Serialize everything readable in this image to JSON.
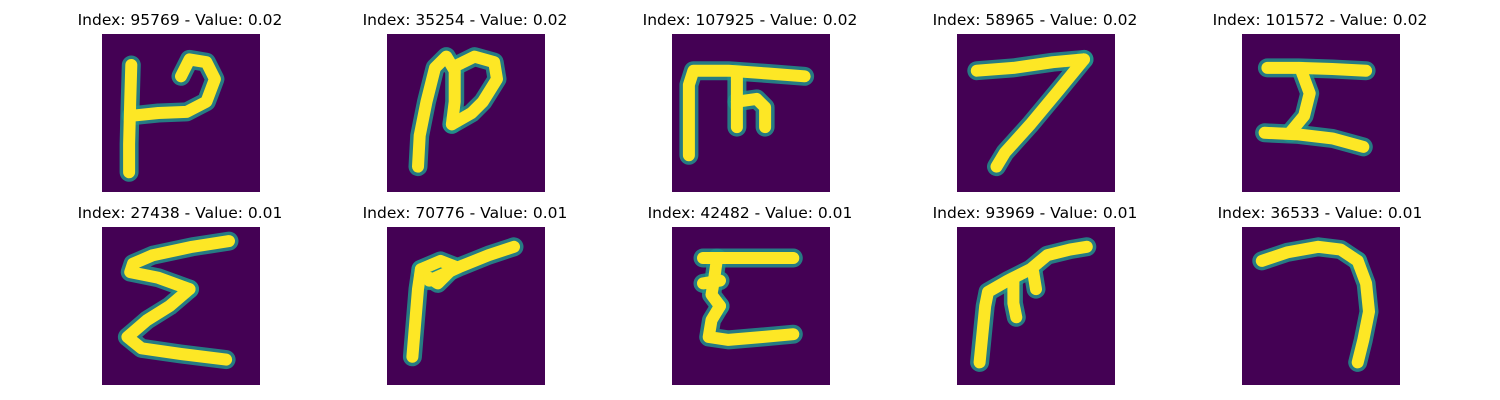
{
  "figure": {
    "colormap": "viridis",
    "background_color": "#440154",
    "stroke_mid_color": "#21918c",
    "stroke_color": "#fde725",
    "title_color": "#000000"
  },
  "panels": [
    {
      "title": "Index: 95769 - Value: 0.02",
      "index": 95769,
      "value": 0.02,
      "strokes": [
        [
          [
            5.2,
            5.5
          ],
          [
            5.0,
            12.0
          ],
          [
            4.8,
            19.5
          ],
          [
            4.8,
            24.5
          ]
        ],
        [
          [
            5.2,
            14.5
          ],
          [
            10.0,
            14.0
          ],
          [
            15.0,
            13.8
          ],
          [
            18.5,
            12.0
          ],
          [
            20.0,
            8.0
          ],
          [
            18.5,
            5.0
          ],
          [
            15.5,
            4.5
          ],
          [
            14.0,
            7.5
          ]
        ]
      ]
    },
    {
      "title": "Index: 35254 - Value: 0.02",
      "index": 35254,
      "value": 0.02,
      "strokes": [
        [
          [
            5.5,
            23.5
          ],
          [
            5.8,
            18.0
          ],
          [
            7.0,
            12.0
          ],
          [
            8.5,
            6.0
          ],
          [
            10.5,
            4.0
          ],
          [
            12.0,
            6.5
          ],
          [
            12.0,
            12.0
          ],
          [
            11.5,
            16.0
          ]
        ],
        [
          [
            11.5,
            16.0
          ],
          [
            15.0,
            14.0
          ],
          [
            17.0,
            12.0
          ],
          [
            19.5,
            8.0
          ],
          [
            19.0,
            5.0
          ],
          [
            15.5,
            4.0
          ],
          [
            12.5,
            5.5
          ]
        ]
      ]
    },
    {
      "title": "Index: 107925 - Value: 0.02",
      "index": 107925,
      "value": 0.02,
      "strokes": [
        [
          [
            3.0,
            21.5
          ],
          [
            3.0,
            15.0
          ],
          [
            3.0,
            9.0
          ],
          [
            3.8,
            6.5
          ],
          [
            10.0,
            6.5
          ],
          [
            17.0,
            7.0
          ],
          [
            23.5,
            7.5
          ]
        ],
        [
          [
            11.5,
            7.0
          ],
          [
            11.5,
            13.0
          ],
          [
            11.5,
            16.5
          ]
        ],
        [
          [
            11.5,
            12.0
          ],
          [
            15.0,
            11.5
          ],
          [
            16.5,
            13.0
          ],
          [
            16.5,
            16.5
          ]
        ]
      ]
    },
    {
      "title": "Index: 58965 - Value: 0.02",
      "index": 58965,
      "value": 0.02,
      "strokes": [
        [
          [
            3.5,
            6.5
          ],
          [
            10.0,
            6.0
          ],
          [
            17.0,
            5.0
          ],
          [
            22.5,
            4.5
          ]
        ],
        [
          [
            22.5,
            4.5
          ],
          [
            18.0,
            10.0
          ],
          [
            13.0,
            16.0
          ],
          [
            8.5,
            21.0
          ],
          [
            7.0,
            23.5
          ]
        ]
      ]
    },
    {
      "title": "Index: 101572 - Value: 0.02",
      "index": 101572,
      "value": 0.02,
      "strokes": [
        [
          [
            4.5,
            6.0
          ],
          [
            10.0,
            6.0
          ],
          [
            16.0,
            6.2
          ],
          [
            22.0,
            6.5
          ]
        ],
        [
          [
            10.5,
            6.5
          ],
          [
            12.0,
            10.5
          ],
          [
            11.0,
            14.5
          ],
          [
            8.5,
            17.5
          ]
        ],
        [
          [
            4.0,
            17.5
          ],
          [
            10.0,
            17.8
          ],
          [
            16.0,
            18.5
          ],
          [
            21.5,
            20.0
          ]
        ]
      ]
    },
    {
      "title": "Index: 27438 - Value: 0.01",
      "index": 27438,
      "value": 0.01,
      "strokes": [
        [
          [
            22.5,
            2.5
          ],
          [
            16.0,
            3.5
          ],
          [
            9.0,
            5.0
          ],
          [
            5.5,
            6.5
          ],
          [
            5.0,
            8.0
          ],
          [
            10.0,
            9.0
          ],
          [
            15.5,
            11.0
          ]
        ],
        [
          [
            15.5,
            11.0
          ],
          [
            12.0,
            14.0
          ],
          [
            8.0,
            16.5
          ],
          [
            4.5,
            19.5
          ],
          [
            7.0,
            21.5
          ],
          [
            14.0,
            22.5
          ],
          [
            22.0,
            23.5
          ]
        ]
      ]
    },
    {
      "title": "Index: 70776 - Value: 0.01",
      "index": 70776,
      "value": 0.01,
      "strokes": [
        [
          [
            4.5,
            23.0
          ],
          [
            5.0,
            17.0
          ],
          [
            5.5,
            11.0
          ],
          [
            6.0,
            7.5
          ]
        ],
        [
          [
            6.0,
            7.5
          ],
          [
            9.5,
            6.0
          ],
          [
            12.0,
            7.0
          ],
          [
            9.0,
            10.0
          ],
          [
            7.5,
            9.0
          ]
        ],
        [
          [
            7.5,
            9.5
          ],
          [
            13.0,
            7.0
          ],
          [
            18.0,
            5.0
          ],
          [
            22.5,
            3.5
          ]
        ]
      ]
    },
    {
      "title": "Index: 42482 - Value: 0.01",
      "index": 42482,
      "value": 0.01,
      "strokes": [
        [
          [
            5.5,
            5.5
          ],
          [
            11.0,
            5.5
          ],
          [
            16.5,
            5.5
          ],
          [
            21.5,
            5.5
          ]
        ],
        [
          [
            8.0,
            5.5
          ],
          [
            7.5,
            9.0
          ],
          [
            7.0,
            12.0
          ],
          [
            8.5,
            14.0
          ]
        ],
        [
          [
            5.5,
            10.0
          ],
          [
            8.5,
            9.5
          ]
        ],
        [
          [
            8.5,
            14.0
          ],
          [
            7.0,
            16.5
          ],
          [
            6.5,
            19.5
          ],
          [
            10.0,
            20.0
          ],
          [
            16.0,
            19.5
          ],
          [
            21.5,
            19.0
          ]
        ]
      ]
    },
    {
      "title": "Index: 93969 - Value: 0.01",
      "index": 93969,
      "value": 0.01,
      "strokes": [
        [
          [
            4.0,
            24.0
          ],
          [
            4.5,
            19.0
          ],
          [
            5.0,
            14.0
          ],
          [
            5.5,
            11.5
          ],
          [
            9.0,
            9.5
          ],
          [
            13.0,
            7.5
          ],
          [
            16.0,
            5.0
          ],
          [
            20.0,
            4.0
          ],
          [
            23.0,
            3.5
          ]
        ],
        [
          [
            10.0,
            9.5
          ],
          [
            10.0,
            13.5
          ],
          [
            10.5,
            16.0
          ]
        ],
        [
          [
            13.5,
            8.0
          ],
          [
            14.0,
            11.0
          ]
        ]
      ]
    },
    {
      "title": "Index: 36533 - Value: 0.01",
      "index": 36533,
      "value": 0.01,
      "strokes": [
        [
          [
            3.5,
            6.0
          ],
          [
            8.0,
            4.5
          ],
          [
            13.5,
            3.5
          ],
          [
            17.5,
            4.0
          ],
          [
            20.5,
            6.0
          ]
        ],
        [
          [
            20.5,
            6.0
          ],
          [
            22.0,
            10.0
          ],
          [
            22.5,
            15.0
          ],
          [
            21.5,
            20.0
          ],
          [
            20.5,
            24.0
          ]
        ]
      ]
    }
  ]
}
